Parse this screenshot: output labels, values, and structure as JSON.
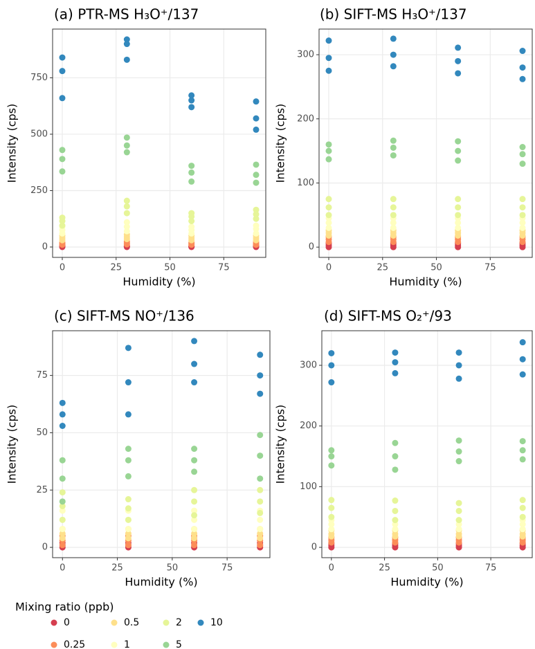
{
  "chart_data": [
    {
      "type": "scatter",
      "title": "(a) PTR-MS H₃O⁺/137",
      "x_label": "Humidity (%)",
      "y_label": "Intensity (cps)",
      "xlim": [
        -4.5,
        94.5
      ],
      "xticks": [
        0,
        25,
        50,
        75
      ],
      "ylim": [
        -46,
        966
      ],
      "yticks": [
        0,
        250,
        500,
        750
      ],
      "grid": true,
      "x": [
        0,
        0,
        0,
        30,
        30,
        30,
        60,
        60,
        60,
        90,
        90,
        90
      ],
      "series": [
        {
          "values": [
            0,
            3,
            6,
            0,
            3,
            5,
            0,
            2,
            4,
            0,
            3,
            6
          ]
        },
        {
          "values": [
            10,
            15,
            20,
            12,
            18,
            25,
            10,
            15,
            20,
            10,
            15,
            22
          ]
        },
        {
          "values": [
            30,
            40,
            50,
            35,
            45,
            55,
            30,
            40,
            50,
            30,
            40,
            50
          ]
        },
        {
          "values": [
            60,
            75,
            90,
            70,
            90,
            110,
            60,
            75,
            90,
            60,
            80,
            95
          ]
        },
        {
          "values": [
            95,
            115,
            130,
            150,
            180,
            205,
            115,
            135,
            150,
            125,
            145,
            165
          ]
        },
        {
          "values": [
            335,
            390,
            430,
            420,
            450,
            485,
            290,
            330,
            360,
            285,
            320,
            365
          ]
        },
        {
          "values": [
            660,
            780,
            840,
            830,
            900,
            920,
            620,
            650,
            672,
            520,
            570,
            645
          ]
        }
      ]
    },
    {
      "type": "scatter",
      "title": "(b) SIFT-MS H₃O⁺/137",
      "x_label": "Humidity (%)",
      "y_label": "Intensity (cps)",
      "xlim": [
        -4.5,
        94.5
      ],
      "xticks": [
        0,
        25,
        50,
        75
      ],
      "ylim": [
        -16,
        340
      ],
      "yticks": [
        0,
        100,
        200,
        300
      ],
      "grid": true,
      "x": [
        0,
        0,
        0,
        30,
        30,
        30,
        60,
        60,
        60,
        90,
        90,
        90
      ],
      "series": [
        {
          "values": [
            0,
            3,
            6,
            0,
            3,
            6,
            0,
            3,
            6,
            0,
            3,
            6
          ]
        },
        {
          "values": [
            8,
            12,
            16,
            8,
            12,
            16,
            8,
            12,
            16,
            8,
            12,
            16
          ]
        },
        {
          "values": [
            18,
            22,
            26,
            18,
            22,
            26,
            18,
            22,
            26,
            18,
            22,
            26
          ]
        },
        {
          "values": [
            30,
            38,
            45,
            30,
            38,
            45,
            30,
            38,
            45,
            30,
            38,
            45
          ]
        },
        {
          "values": [
            50,
            62,
            75,
            50,
            62,
            75,
            50,
            62,
            75,
            50,
            62,
            75
          ]
        },
        {
          "values": [
            137,
            150,
            160,
            143,
            155,
            166,
            135,
            150,
            165,
            130,
            145,
            156
          ]
        },
        {
          "values": [
            275,
            295,
            322,
            282,
            300,
            325,
            271,
            290,
            311,
            262,
            280,
            306
          ]
        }
      ]
    },
    {
      "type": "scatter",
      "title": "(c) SIFT-MS NO⁺/136",
      "x_label": "Humidity (%)",
      "y_label": "Intensity (cps)",
      "xlim": [
        -4.5,
        94.5
      ],
      "xticks": [
        0,
        25,
        50,
        75
      ],
      "ylim": [
        -4.5,
        94.5
      ],
      "yticks": [
        0,
        25,
        50,
        75
      ],
      "grid": true,
      "x": [
        0,
        0,
        0,
        30,
        30,
        30,
        60,
        60,
        60,
        90,
        90,
        90
      ],
      "series": [
        {
          "values": [
            0,
            1,
            2,
            0,
            1,
            2,
            0,
            2,
            4,
            0,
            1,
            2
          ]
        },
        {
          "values": [
            1,
            3,
            5,
            1,
            3,
            5,
            1,
            3,
            5,
            1,
            3,
            5
          ]
        },
        {
          "values": [
            4,
            6,
            8,
            4,
            6,
            8,
            4,
            6,
            8,
            4,
            6,
            8
          ]
        },
        {
          "values": [
            8,
            12,
            16,
            8,
            12,
            16,
            8,
            12,
            16,
            8,
            12,
            16
          ]
        },
        {
          "values": [
            12,
            18,
            24,
            12,
            17,
            21,
            14,
            20,
            25,
            15,
            20,
            25
          ]
        },
        {
          "values": [
            20,
            30,
            38,
            31,
            38,
            43,
            33,
            38,
            43,
            30,
            40,
            49
          ]
        },
        {
          "values": [
            53,
            58,
            63,
            58,
            72,
            87,
            72,
            80,
            90,
            67,
            75,
            84
          ]
        }
      ]
    },
    {
      "type": "scatter",
      "title": "(d) SIFT-MS O₂⁺/93",
      "x_label": "Humidity (%)",
      "y_label": "Intensity (cps)",
      "xlim": [
        -4.5,
        94.5
      ],
      "xticks": [
        0,
        25,
        50,
        75
      ],
      "ylim": [
        -17,
        357
      ],
      "yticks": [
        0,
        100,
        200,
        300
      ],
      "grid": true,
      "x": [
        0,
        0,
        0,
        30,
        30,
        30,
        60,
        60,
        60,
        90,
        90,
        90
      ],
      "series": [
        {
          "values": [
            0,
            3,
            6,
            0,
            3,
            6,
            0,
            3,
            6,
            0,
            3,
            6
          ]
        },
        {
          "values": [
            8,
            12,
            16,
            8,
            12,
            16,
            8,
            12,
            16,
            8,
            12,
            16
          ]
        },
        {
          "values": [
            18,
            22,
            28,
            18,
            22,
            28,
            18,
            22,
            28,
            18,
            22,
            28
          ]
        },
        {
          "values": [
            30,
            38,
            45,
            30,
            38,
            45,
            30,
            38,
            45,
            30,
            38,
            45
          ]
        },
        {
          "values": [
            50,
            65,
            78,
            45,
            60,
            77,
            45,
            60,
            73,
            50,
            65,
            78
          ]
        },
        {
          "values": [
            135,
            150,
            160,
            128,
            150,
            172,
            142,
            158,
            176,
            145,
            160,
            175
          ]
        },
        {
          "values": [
            272,
            300,
            320,
            287,
            305,
            321,
            278,
            300,
            321,
            285,
            310,
            338
          ]
        }
      ]
    }
  ],
  "legend": {
    "title": "Mixing ratio (ppb)",
    "series": [
      {
        "name": "0",
        "color": "#d53e4f"
      },
      {
        "name": "0.25",
        "color": "#fc8d59"
      },
      {
        "name": "0.5",
        "color": "#fee08b"
      },
      {
        "name": "1",
        "color": "#ffffbf"
      },
      {
        "name": "2",
        "color": "#e6f598"
      },
      {
        "name": "5",
        "color": "#99d594"
      },
      {
        "name": "10",
        "color": "#3288bd"
      }
    ]
  }
}
